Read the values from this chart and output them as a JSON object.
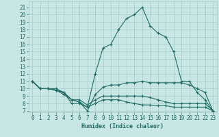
{
  "xlabel": "Humidex (Indice chaleur)",
  "xlim": [
    -0.5,
    23.5
  ],
  "ylim": [
    6.8,
    21.8
  ],
  "yticks": [
    7,
    8,
    9,
    10,
    11,
    12,
    13,
    14,
    15,
    16,
    17,
    18,
    19,
    20,
    21
  ],
  "xticks": [
    0,
    1,
    2,
    3,
    4,
    5,
    6,
    7,
    8,
    9,
    10,
    11,
    12,
    13,
    14,
    15,
    16,
    17,
    18,
    19,
    20,
    21,
    22,
    23
  ],
  "bg_color": "#c8e6e3",
  "grid_color": "#a8ccc9",
  "line_color": "#1e6b65",
  "lines": [
    {
      "x": [
        0,
        1,
        2,
        3,
        4,
        5,
        6,
        7,
        8,
        9,
        10,
        11,
        12,
        13,
        14,
        15,
        16,
        17,
        18,
        19,
        20,
        21,
        22,
        23
      ],
      "y": [
        11,
        10,
        10,
        10,
        9.5,
        8,
        8,
        7.5,
        12,
        15.5,
        16,
        18,
        19.5,
        20,
        21,
        18.5,
        17.5,
        17,
        15,
        11,
        11,
        9.5,
        8.5,
        7
      ]
    },
    {
      "x": [
        0,
        1,
        2,
        3,
        4,
        5,
        6,
        7,
        8,
        9,
        10,
        11,
        12,
        13,
        14,
        15,
        16,
        17,
        18,
        19,
        20,
        21,
        22,
        23
      ],
      "y": [
        11,
        10,
        10,
        9.8,
        9.2,
        8.5,
        8.2,
        7,
        9.2,
        10.2,
        10.5,
        10.5,
        10.8,
        10.8,
        11,
        10.8,
        10.8,
        10.8,
        10.8,
        10.8,
        10.5,
        10,
        9.5,
        7
      ]
    },
    {
      "x": [
        0,
        1,
        2,
        3,
        4,
        5,
        6,
        7,
        8,
        9,
        10,
        11,
        12,
        13,
        14,
        15,
        16,
        17,
        18,
        19,
        20,
        21,
        22,
        23
      ],
      "y": [
        11,
        10,
        10,
        9.8,
        9.5,
        8.5,
        8.5,
        7.8,
        8.5,
        9,
        9,
        9,
        9,
        9,
        9,
        8.8,
        8.5,
        8.2,
        8,
        8,
        8,
        8,
        8,
        7
      ]
    },
    {
      "x": [
        0,
        1,
        2,
        3,
        4,
        5,
        6,
        7,
        8,
        9,
        10,
        11,
        12,
        13,
        14,
        15,
        16,
        17,
        18,
        19,
        20,
        21,
        22,
        23
      ],
      "y": [
        11,
        10,
        10,
        9.8,
        9.5,
        8.5,
        8.2,
        7.5,
        8,
        8.5,
        8.5,
        8.5,
        8.2,
        8,
        7.8,
        7.8,
        7.7,
        7.7,
        7.5,
        7.5,
        7.5,
        7.5,
        7.5,
        7
      ]
    }
  ]
}
